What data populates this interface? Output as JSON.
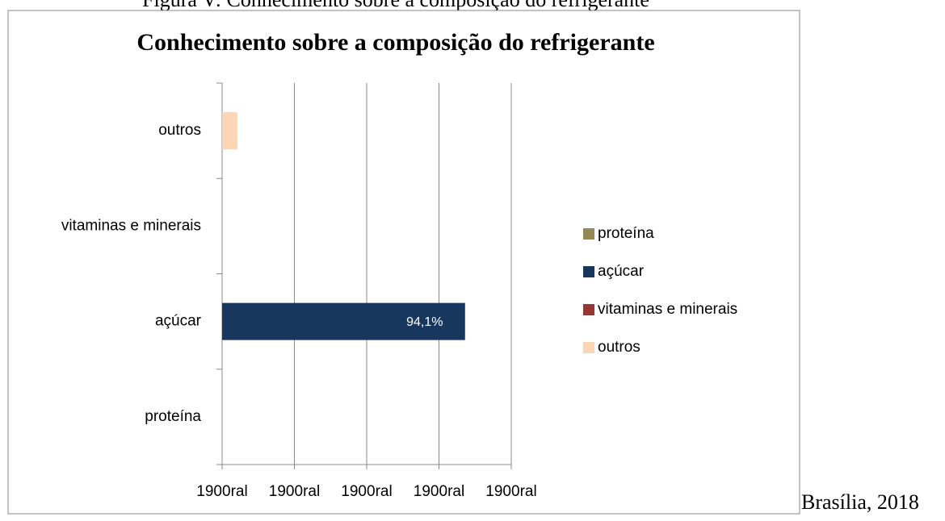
{
  "caption": "Figura V: Conhecimento sobre a composição do refrigerante",
  "footer": "Brasília, 2018",
  "chart_data": {
    "type": "bar",
    "orientation": "horizontal",
    "title": "Conhecimento sobre a composição do refrigerante",
    "categories": [
      "proteína",
      "açúcar",
      "vitaminas e minerais",
      "outros"
    ],
    "series": [
      {
        "name": "proteína",
        "color": "#938953",
        "values": [
          0,
          null,
          null,
          null
        ]
      },
      {
        "name": "açúcar",
        "color": "#17375e",
        "values": [
          null,
          94.1,
          null,
          null
        ],
        "value_labels": [
          null,
          "94,1%",
          null,
          null
        ]
      },
      {
        "name": "vitaminas e minerais",
        "color": "#953735",
        "values": [
          null,
          null,
          0,
          null
        ]
      },
      {
        "name": "outros",
        "color": "#fcd5b5",
        "values": [
          null,
          null,
          null,
          5.9
        ]
      }
    ],
    "xlim": [
      0,
      112
    ],
    "xticks": [
      {
        "value": 0,
        "label": "1900ral"
      },
      {
        "value": 28,
        "label": "1900ral"
      },
      {
        "value": 56,
        "label": "1900ral"
      },
      {
        "value": 84,
        "label": "1900ral"
      },
      {
        "value": 112,
        "label": "1900ral"
      }
    ],
    "grid": true,
    "legend": "right"
  }
}
